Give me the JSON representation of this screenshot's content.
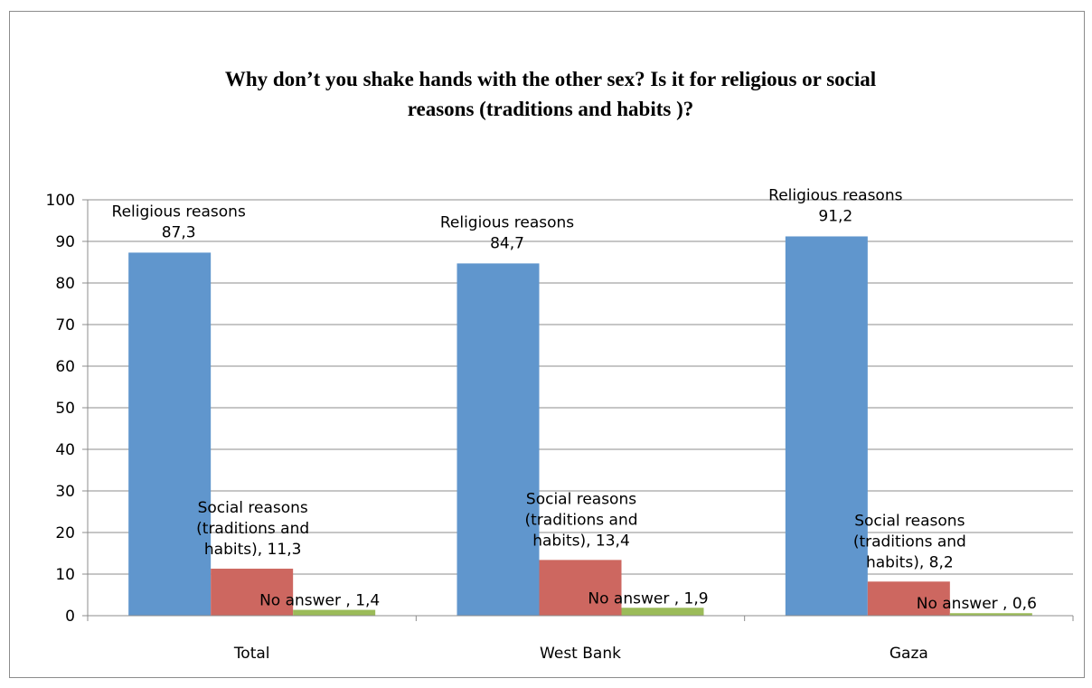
{
  "chart_data": {
    "type": "bar",
    "title_lines": [
      "Why don’t you shake hands with the other sex? Is it for religious or social",
      "reasons (traditions and habits )?"
    ],
    "categories": [
      "Total",
      "West Bank",
      "Gaza"
    ],
    "ylim": [
      0,
      100
    ],
    "yticks": [
      0,
      10,
      20,
      30,
      40,
      50,
      60,
      70,
      80,
      90,
      100
    ],
    "grid": true,
    "series": [
      {
        "name": "Religious reasons",
        "color": "#6096cd",
        "values": [
          87.3,
          84.7,
          91.2
        ],
        "data_labels": [
          [
            "Religious reasons",
            "87,3"
          ],
          [
            "Religious reasons",
            "84,7"
          ],
          [
            "Religious reasons",
            "91,2"
          ]
        ]
      },
      {
        "name": "Social reasons (traditions and habits)",
        "color": "#cd6760",
        "values": [
          11.3,
          13.4,
          8.2
        ],
        "data_labels": [
          [
            "Social reasons",
            "(traditions and",
            "habits), 11,3"
          ],
          [
            "Social reasons",
            "(traditions and",
            "habits), 13,4"
          ],
          [
            "Social reasons",
            "(traditions and",
            "habits), 8,2"
          ]
        ]
      },
      {
        "name": "No answer",
        "color": "#9bbb59",
        "values": [
          1.4,
          1.9,
          0.6
        ],
        "data_labels": [
          [
            "No answer , 1,4"
          ],
          [
            "No answer , 1,9"
          ],
          [
            "No answer , 0,6"
          ]
        ]
      }
    ]
  }
}
